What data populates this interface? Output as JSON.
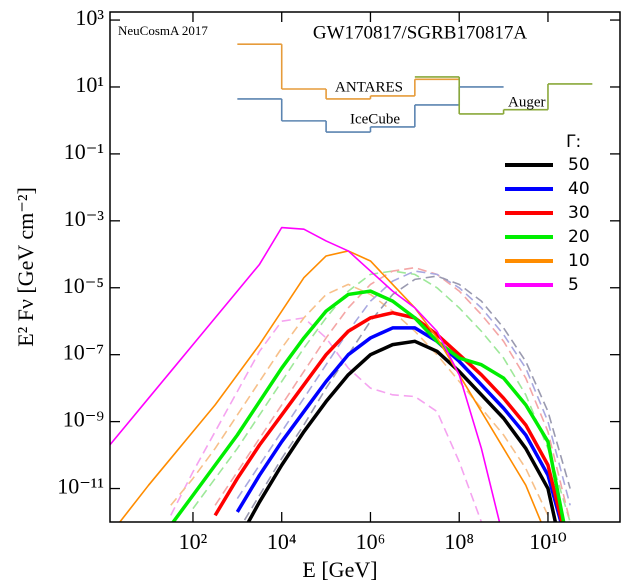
{
  "chart_data": {
    "type": "line",
    "title": "GW170817/SGRB170817A",
    "annotation": "NeuCosmA 2017",
    "x_label": "E [GeV]",
    "y_label": "E² Fν [GeV cm⁻²]",
    "log_x": true,
    "log_y": true,
    "xlim": [
      1.35,
      420000000000
    ],
    "ylim": [
      1e-12,
      1740
    ],
    "xticks": [
      {
        "value": 100,
        "label": "10²"
      },
      {
        "value": 10000,
        "label": "10⁴"
      },
      {
        "value": 1000000,
        "label": "10⁶"
      },
      {
        "value": 100000000,
        "label": "10⁸"
      },
      {
        "value": 10000000000,
        "label": "10¹⁰"
      }
    ],
    "yticks": [
      {
        "value": 1000,
        "label": "10³"
      },
      {
        "value": 10,
        "label": "10¹"
      },
      {
        "value": 0.1,
        "label": "10⁻¹"
      },
      {
        "value": 0.001,
        "label": "10⁻³"
      },
      {
        "value": 1e-05,
        "label": "10⁻⁵"
      },
      {
        "value": 1e-07,
        "label": "10⁻⁷"
      },
      {
        "value": 1e-09,
        "label": "10⁻⁹"
      },
      {
        "value": 1e-11,
        "label": "10⁻¹¹"
      }
    ],
    "legend_title": "Γ:",
    "legend": "upper right",
    "x": [
      1,
      3.16,
      10,
      31.6,
      100,
      316,
      1000,
      3160,
      10000,
      31600,
      100000,
      316000,
      1000000,
      3160000,
      10000000,
      31600000,
      100000000,
      316000000,
      1000000000,
      3160000000,
      10000000000,
      31600000000,
      100000000000
    ],
    "series": [
      {
        "name": "50",
        "color": "#000000",
        "values": [
          null,
          null,
          null,
          null,
          null,
          null,
          2.51e-13,
          3.98e-12,
          5.01e-11,
          5.01e-10,
          3.98e-09,
          2.51e-08,
          1e-07,
          2e-07,
          2.51e-07,
          1.26e-07,
          3.16e-08,
          6.31e-09,
          1.26e-09,
          1.58e-10,
          1e-11,
          1e-14,
          null
        ]
      },
      {
        "name": "40",
        "color": "#0000ff",
        "values": [
          null,
          null,
          null,
          null,
          null,
          null,
          2e-12,
          2.51e-11,
          2.51e-10,
          2e-09,
          1.58e-08,
          1e-07,
          3.16e-07,
          6.31e-07,
          6.31e-07,
          2.51e-07,
          6.31e-08,
          1.26e-08,
          2.51e-09,
          3.98e-10,
          2.51e-11,
          1e-13,
          null
        ]
      },
      {
        "name": "30",
        "color": "#ff0000",
        "values": [
          null,
          null,
          null,
          null,
          null,
          1.58e-12,
          2e-11,
          2e-10,
          1.58e-09,
          1.26e-08,
          1e-07,
          5.01e-07,
          1.26e-06,
          1.78e-06,
          1.26e-06,
          3.98e-07,
          1e-07,
          2.51e-08,
          5.01e-09,
          7.94e-10,
          5.01e-11,
          1e-13,
          null
        ]
      },
      {
        "name": "20",
        "color": "#00ee00",
        "values": [
          null,
          null,
          null,
          7.94e-13,
          6.31e-12,
          5.01e-11,
          3.98e-10,
          3.98e-09,
          3.98e-08,
          3.16e-07,
          2e-06,
          6.31e-06,
          7.94e-06,
          3.98e-06,
          1.26e-06,
          2.51e-07,
          7.94e-08,
          5.01e-08,
          2e-08,
          3.16e-09,
          2.51e-10,
          1e-13,
          null
        ]
      },
      {
        "name": "10",
        "color": "#ff8c00",
        "values": [
          2.51e-13,
          1.78e-12,
          1.26e-11,
          7.94e-11,
          5.01e-10,
          3.16e-09,
          2.51e-08,
          2e-07,
          2e-06,
          2e-05,
          8.91e-05,
          0.000126,
          6.31e-05,
          1.26e-05,
          2.51e-06,
          3.16e-07,
          2.51e-08,
          2e-09,
          1.58e-10,
          1.26e-11,
          3.16e-13,
          null,
          null
        ]
      },
      {
        "name": "5",
        "color": "#ff00ff",
        "values": [
          1.26e-10,
          7.94e-10,
          5.01e-09,
          3.16e-08,
          2e-07,
          1.26e-06,
          7.94e-06,
          5.01e-05,
          0.000631,
          0.000562,
          0.000251,
          0.000126,
          3.16e-05,
          7.94e-06,
          2.51e-06,
          5.01e-07,
          2.51e-08,
          1.58e-10,
          3.16e-13,
          null,
          null,
          null,
          null
        ]
      },
      {
        "color": "#f5a3f0",
        "dashed": true,
        "values": [
          null,
          null,
          null,
          1.58e-12,
          3.16e-11,
          5.01e-10,
          7.94e-09,
          1.26e-07,
          1e-06,
          1.26e-06,
          3.16e-07,
          3.98e-08,
          1e-08,
          6.31e-09,
          5.62e-09,
          2e-09,
          6.31e-11,
          1e-12,
          null,
          null,
          null,
          null,
          null
        ]
      },
      {
        "color": "#f7c08a",
        "dashed": true,
        "values": [
          null,
          null,
          null,
          3.16e-12,
          2e-11,
          1.58e-10,
          1.58e-09,
          1.58e-08,
          1.58e-07,
          1.26e-06,
          6.31e-06,
          1.26e-05,
          6.31e-06,
          2e-06,
          5.01e-07,
          1e-07,
          1.58e-08,
          2.51e-09,
          3.98e-10,
          3.98e-11,
          1.58e-12,
          null,
          null
        ]
      },
      {
        "color": "#9ee89a",
        "dashed": true,
        "values": [
          null,
          null,
          null,
          null,
          2.51e-12,
          2e-11,
          1.58e-10,
          1.58e-09,
          1.58e-08,
          1.58e-07,
          1.26e-06,
          7.94e-06,
          2.51e-05,
          3.16e-05,
          2.51e-05,
          1e-05,
          2.51e-06,
          5.01e-07,
          7.94e-08,
          6.31e-09,
          1.58e-10,
          1e-12,
          null
        ]
      },
      {
        "color": "#f4a6a6",
        "dashed": true,
        "values": [
          null,
          null,
          null,
          null,
          null,
          3.16e-12,
          3.16e-11,
          3.16e-10,
          3.16e-09,
          3.16e-08,
          3.16e-07,
          2.51e-06,
          1.26e-05,
          3.16e-05,
          3.98e-05,
          2.51e-05,
          7.94e-06,
          1.58e-06,
          2.51e-07,
          2e-08,
          5.01e-10,
          1e-12,
          null
        ]
      },
      {
        "color": "#a8a8e0",
        "dashed": true,
        "values": [
          null,
          null,
          null,
          null,
          null,
          null,
          5.01e-12,
          5.01e-11,
          5.01e-10,
          5.01e-09,
          5.01e-08,
          5.01e-07,
          3.98e-06,
          1.58e-05,
          3.16e-05,
          2.51e-05,
          1e-05,
          2.51e-06,
          3.98e-07,
          3.98e-08,
          1e-09,
          3.16e-12,
          null
        ]
      },
      {
        "color": "#9a9ab0",
        "dashed": true,
        "values": [
          null,
          null,
          null,
          null,
          null,
          null,
          5.01e-13,
          6.31e-12,
          7.94e-11,
          7.94e-10,
          1e-08,
          1e-07,
          1e-06,
          6.31e-06,
          1.78e-05,
          2.24e-05,
          1.26e-05,
          3.98e-06,
          6.31e-07,
          6.31e-08,
          2e-09,
          1e-11,
          null
        ]
      }
    ],
    "limits": [
      {
        "name": "ANTARES",
        "color": "#e69b3a",
        "bins": [
          1000,
          10000,
          100000,
          1000000,
          10000000,
          100000000
        ],
        "values": [
          190,
          8.7,
          4.4,
          5.4,
          17
        ]
      },
      {
        "name": "IceCube",
        "color": "#5b84b1",
        "bins": [
          1000,
          10000,
          100000,
          1000000,
          10000000,
          100000000,
          1000000000
        ],
        "values": [
          4.4,
          0.97,
          0.45,
          0.64,
          2.9,
          10
        ]
      },
      {
        "name": "Auger",
        "color": "#8aa83a",
        "bins": [
          10000000,
          100000000,
          1000000000,
          10000000000,
          100000000000
        ],
        "values": [
          20,
          1.56,
          2.1,
          12.3
        ]
      }
    ]
  }
}
